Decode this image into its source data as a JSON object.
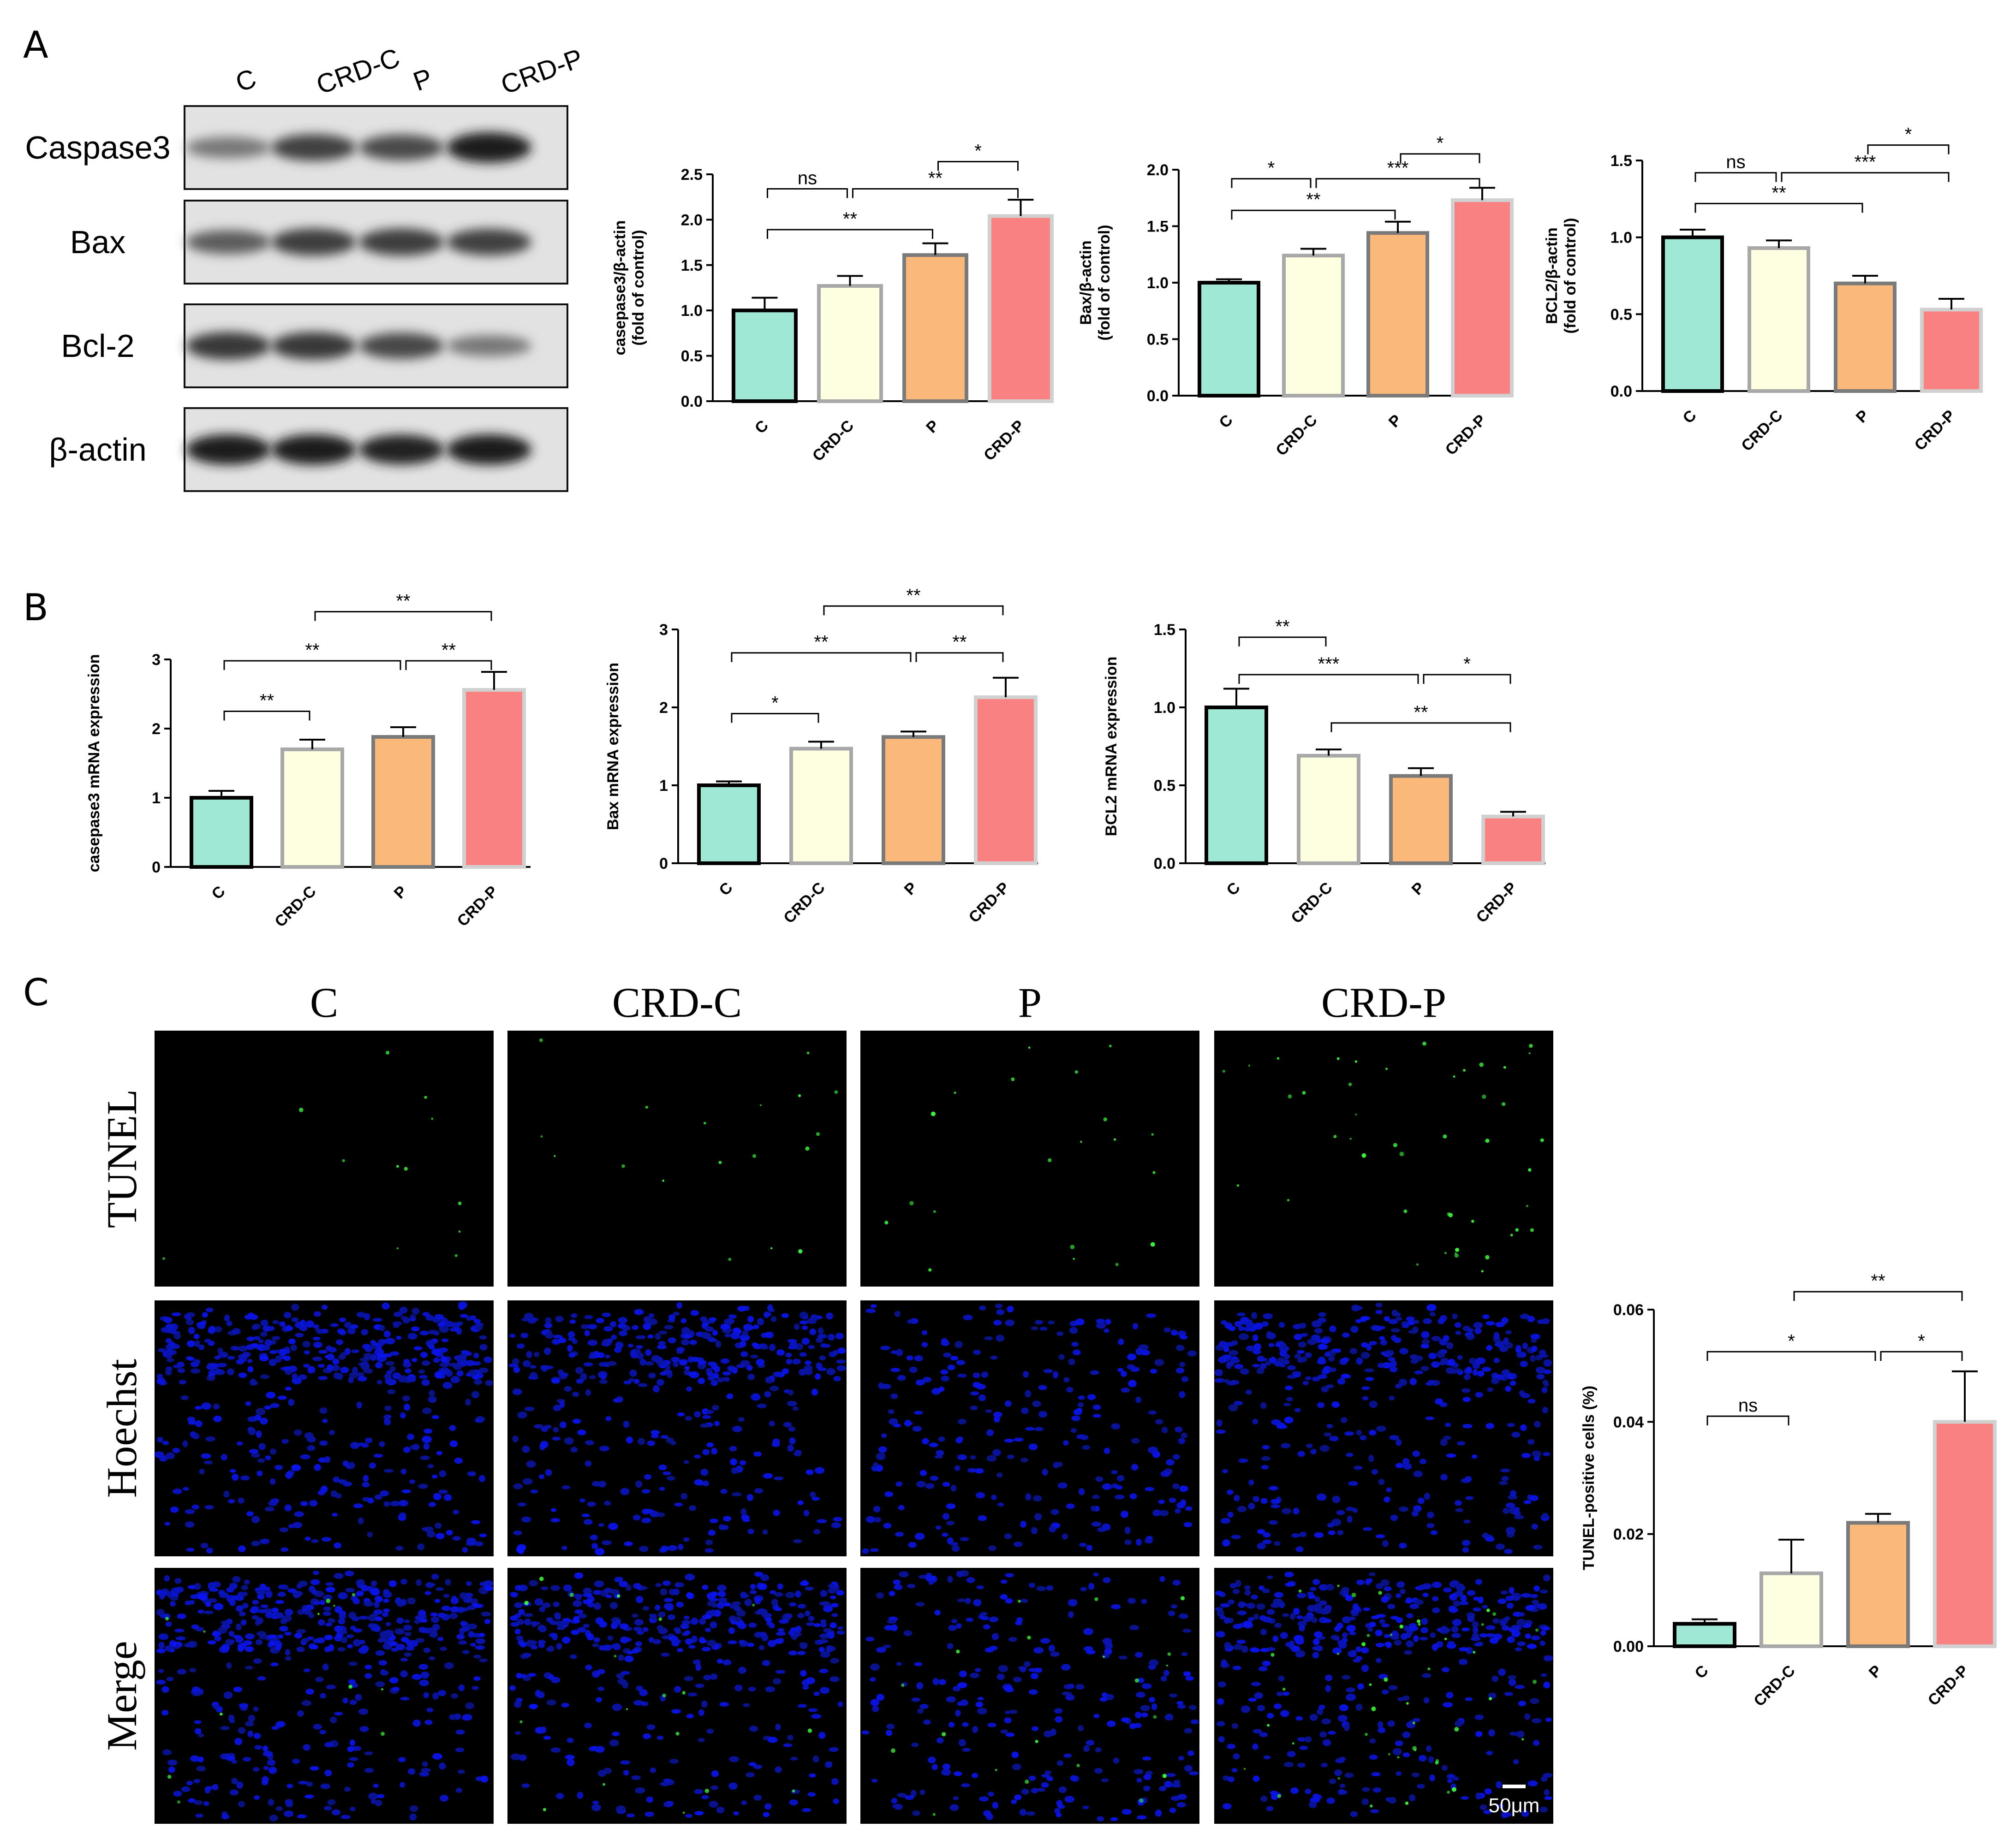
{
  "panels": {
    "a": "A",
    "b": "B",
    "c": "C"
  },
  "colors": {
    "C": "#9ee8d5",
    "CRD-C": "#fefee0",
    "P": "#fbb87b",
    "CRD-P": "#fa8181",
    "edge_C": "#000000",
    "edge_CRD-C": "#a8a8a8",
    "edge_P": "#7a7a7a",
    "edge_CRD-P": "#d0d0d0"
  },
  "western_blot": {
    "lanes": [
      "C",
      "CRD-C",
      "P",
      "CRD-P"
    ],
    "rows": [
      {
        "label": "Caspase3",
        "intensity": [
          0.45,
          0.75,
          0.7,
          0.95
        ]
      },
      {
        "label": "Bax",
        "intensity": [
          0.6,
          0.78,
          0.78,
          0.75
        ]
      },
      {
        "label": "Bcl-2",
        "intensity": [
          0.8,
          0.8,
          0.72,
          0.45
        ]
      },
      {
        "label": "β-actin",
        "intensity": [
          0.95,
          0.95,
          0.92,
          0.95
        ]
      }
    ]
  },
  "imaging": {
    "columns": [
      "C",
      "CRD-C",
      "P",
      "CRD-P"
    ],
    "rows": [
      "TUNEL",
      "Hoechst",
      "Merge"
    ],
    "scale_bar": "50μm"
  },
  "chart_data": [
    {
      "id": "a1",
      "type": "bar",
      "ylabel": [
        "casepase3/β-actin",
        "(fold of control)"
      ],
      "categories": [
        "C",
        "CRD-C",
        "P",
        "CRD-P"
      ],
      "values": [
        1.0,
        1.27,
        1.61,
        2.04
      ],
      "errors": [
        0.14,
        0.11,
        0.13,
        0.18
      ],
      "ylim": [
        0,
        2.5
      ],
      "ticks": [
        0.0,
        0.5,
        1.0,
        1.5,
        2.0,
        2.5
      ],
      "ticklabels": [
        "0.0",
        "0.5",
        "1.0",
        "1.5",
        "2.0",
        "2.5"
      ],
      "significance": [
        {
          "from": 0,
          "to": 1,
          "label": "ns",
          "y": 2.34
        },
        {
          "from": 1,
          "to": 3,
          "label": "**",
          "y": 2.34
        },
        {
          "from": 0,
          "to": 2,
          "label": "**",
          "y": 1.89
        },
        {
          "from": 2,
          "to": 3,
          "label": "*",
          "y": 2.64
        }
      ]
    },
    {
      "id": "a2",
      "type": "bar",
      "ylabel": [
        "Bax/β-actin",
        "(fold of control)"
      ],
      "categories": [
        "C",
        "CRD-C",
        "P",
        "CRD-P"
      ],
      "values": [
        1.0,
        1.24,
        1.44,
        1.73
      ],
      "errors": [
        0.03,
        0.06,
        0.1,
        0.11
      ],
      "ylim": [
        0,
        2.0
      ],
      "ticks": [
        0.0,
        0.5,
        1.0,
        1.5,
        2.0
      ],
      "ticklabels": [
        "0.0",
        "0.5",
        "1.0",
        "1.5",
        "2.0"
      ],
      "significance": [
        {
          "from": 0,
          "to": 1,
          "label": "*",
          "y": 1.92
        },
        {
          "from": 1,
          "to": 3,
          "label": "***",
          "y": 1.92
        },
        {
          "from": 0,
          "to": 2,
          "label": "**",
          "y": 1.64
        },
        {
          "from": 2,
          "to": 3,
          "label": "*",
          "y": 2.14
        }
      ]
    },
    {
      "id": "a3",
      "type": "bar",
      "ylabel": [
        "BCL2/β-actin",
        "(fold of control)"
      ],
      "categories": [
        "C",
        "CRD-C",
        "P",
        "CRD-P"
      ],
      "values": [
        1.0,
        0.93,
        0.7,
        0.53
      ],
      "errors": [
        0.05,
        0.05,
        0.05,
        0.07
      ],
      "ylim": [
        0,
        1.5
      ],
      "ticks": [
        0.0,
        0.5,
        1.0,
        1.5
      ],
      "ticklabels": [
        "0.0",
        "0.5",
        "1.0",
        "1.5"
      ],
      "significance": [
        {
          "from": 0,
          "to": 1,
          "label": "ns",
          "y": 1.42
        },
        {
          "from": 1,
          "to": 3,
          "label": "***",
          "y": 1.42
        },
        {
          "from": 0,
          "to": 2,
          "label": "**",
          "y": 1.22
        },
        {
          "from": 2,
          "to": 3,
          "label": "*",
          "y": 1.6
        }
      ]
    },
    {
      "id": "b1",
      "type": "bar",
      "ylabel": [
        "casepase3 mRNA expression"
      ],
      "categories": [
        "C",
        "CRD-C",
        "P",
        "CRD-P"
      ],
      "values": [
        1.0,
        1.7,
        1.88,
        2.56
      ],
      "errors": [
        0.1,
        0.14,
        0.14,
        0.26
      ],
      "ylim": [
        0,
        3
      ],
      "ticks": [
        0,
        1,
        2,
        3
      ],
      "ticklabels": [
        "0",
        "1",
        "2",
        "3"
      ],
      "significance": [
        {
          "from": 0,
          "to": 1,
          "label": "**",
          "y": 2.25
        },
        {
          "from": 0,
          "to": 2,
          "label": "**",
          "y": 2.98
        },
        {
          "from": 2,
          "to": 3,
          "label": "**",
          "y": 2.98
        },
        {
          "from": 1,
          "to": 3,
          "label": "**",
          "y": 3.69
        }
      ]
    },
    {
      "id": "b2",
      "type": "bar",
      "ylabel": [
        "Bax mRNA expression"
      ],
      "categories": [
        "C",
        "CRD-C",
        "P",
        "CRD-P"
      ],
      "values": [
        1.0,
        1.47,
        1.62,
        2.13
      ],
      "errors": [
        0.05,
        0.09,
        0.07,
        0.25
      ],
      "ylim": [
        0,
        3
      ],
      "ticks": [
        0,
        1,
        2,
        3
      ],
      "ticklabels": [
        "0",
        "1",
        "2",
        "3"
      ],
      "significance": [
        {
          "from": 0,
          "to": 1,
          "label": "*",
          "y": 1.92
        },
        {
          "from": 0,
          "to": 2,
          "label": "**",
          "y": 2.7
        },
        {
          "from": 2,
          "to": 3,
          "label": "**",
          "y": 2.7
        },
        {
          "from": 1,
          "to": 3,
          "label": "**",
          "y": 3.3
        }
      ]
    },
    {
      "id": "b3",
      "type": "bar",
      "ylabel": [
        "BCL2 mRNA expression"
      ],
      "categories": [
        "C",
        "CRD-C",
        "P",
        "CRD-P"
      ],
      "values": [
        1.0,
        0.69,
        0.56,
        0.3
      ],
      "errors": [
        0.12,
        0.04,
        0.05,
        0.03
      ],
      "ylim": [
        0,
        1.5
      ],
      "ticks": [
        0.0,
        0.5,
        1.0,
        1.5
      ],
      "ticklabels": [
        "0.0",
        "0.5",
        "1.0",
        "1.5"
      ],
      "significance": [
        {
          "from": 0,
          "to": 1,
          "label": "**",
          "y": 1.45
        },
        {
          "from": 0,
          "to": 2,
          "label": "***",
          "y": 1.21
        },
        {
          "from": 2,
          "to": 3,
          "label": "*",
          "y": 1.21
        },
        {
          "from": 1,
          "to": 3,
          "label": "**",
          "y": 0.9
        }
      ]
    },
    {
      "id": "c1",
      "type": "bar",
      "ylabel": [
        "TUNEL-positive cells (%)"
      ],
      "categories": [
        "C",
        "CRD-C",
        "P",
        "CRD-P"
      ],
      "values": [
        0.004,
        0.013,
        0.022,
        0.04
      ],
      "errors": [
        0.0008,
        0.006,
        0.0016,
        0.009
      ],
      "ylim": [
        0,
        0.06
      ],
      "ticks": [
        0.0,
        0.02,
        0.04,
        0.06
      ],
      "ticklabels": [
        "0.00",
        "0.02",
        "0.04",
        "0.06"
      ],
      "significance": [
        {
          "from": 0,
          "to": 1,
          "label": "ns",
          "y": 0.041
        },
        {
          "from": 0,
          "to": 2,
          "label": "*",
          "y": 0.0525
        },
        {
          "from": 2,
          "to": 3,
          "label": "*",
          "y": 0.0525
        },
        {
          "from": 1,
          "to": 3,
          "label": "**",
          "y": 0.0632
        }
      ]
    }
  ]
}
